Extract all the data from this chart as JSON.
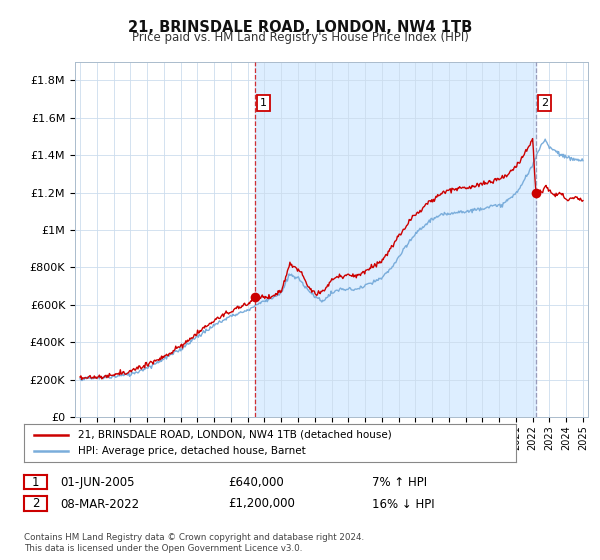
{
  "title": "21, BRINSDALE ROAD, LONDON, NW4 1TB",
  "subtitle": "Price paid vs. HM Land Registry's House Price Index (HPI)",
  "ylabel_ticks": [
    "£0",
    "£200K",
    "£400K",
    "£600K",
    "£800K",
    "£1M",
    "£1.2M",
    "£1.4M",
    "£1.6M",
    "£1.8M"
  ],
  "ytick_values": [
    0,
    200000,
    400000,
    600000,
    800000,
    1000000,
    1200000,
    1400000,
    1600000,
    1800000
  ],
  "ylim": [
    0,
    1900000
  ],
  "xlim_start": 1994.7,
  "xlim_end": 2025.3,
  "vline1_x": 2005.42,
  "vline2_x": 2022.18,
  "marker1_x": 2005.42,
  "marker1_y": 640000,
  "marker2_x": 2022.18,
  "marker2_y": 1200000,
  "property_color": "#cc0000",
  "hpi_color": "#7aaddb",
  "vline1_color": "#cc0000",
  "vline2_color": "#8888aa",
  "shade_color": "#ddeeff",
  "legend_label1": "21, BRINSDALE ROAD, LONDON, NW4 1TB (detached house)",
  "legend_label2": "HPI: Average price, detached house, Barnet",
  "annotation1_label": "1",
  "annotation1_date": "01-JUN-2005",
  "annotation1_price": "£640,000",
  "annotation1_hpi": "7% ↑ HPI",
  "annotation2_label": "2",
  "annotation2_date": "08-MAR-2022",
  "annotation2_price": "£1,200,000",
  "annotation2_hpi": "16% ↓ HPI",
  "footer": "Contains HM Land Registry data © Crown copyright and database right 2024.\nThis data is licensed under the Open Government Licence v3.0.",
  "background_color": "#ffffff",
  "grid_color": "#ccddee"
}
